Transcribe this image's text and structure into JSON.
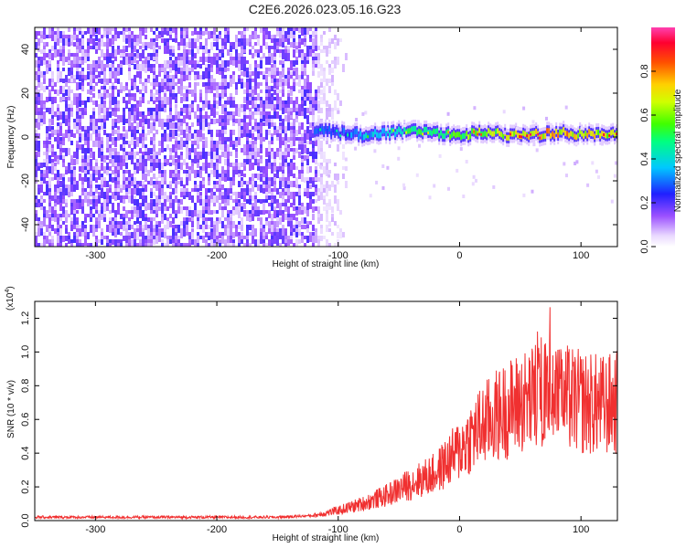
{
  "title": "C2E6.2026.023.05.16.G23",
  "chart_data": [
    {
      "type": "heatmap",
      "name": "spectrogram",
      "xlabel": "Height of straight line (km)",
      "ylabel": "Frequency (Hz)",
      "xlim": [
        -350,
        130
      ],
      "ylim": [
        -50,
        50
      ],
      "xticks": [
        -300,
        -200,
        -100,
        0,
        100
      ],
      "yticks": [
        -40,
        -20,
        0,
        20,
        40
      ],
      "colorbar": {
        "label": "Normalized spectral amplitude",
        "range": [
          0.0,
          1.0
        ],
        "ticks": [
          "0.0",
          "0.2",
          "0.4",
          "0.6",
          "0.8"
        ]
      },
      "noise_region_x": [
        -350,
        -120
      ],
      "signal_track": {
        "x": [
          -120,
          -100,
          -80,
          -60,
          -40,
          -20,
          0,
          20,
          40,
          60,
          80,
          100,
          130
        ],
        "freq": [
          3,
          2,
          1,
          2,
          3,
          2,
          1,
          2,
          1,
          1,
          2,
          1,
          1
        ],
        "amplitude": [
          0.35,
          0.3,
          0.4,
          0.45,
          0.55,
          0.6,
          0.65,
          0.7,
          0.75,
          0.8,
          0.85,
          0.8,
          0.75
        ]
      }
    },
    {
      "type": "line",
      "name": "snr",
      "xlabel": "Height of straight line (km)",
      "ylabel": "SNR (10 * v/v)",
      "y_exponent_label": "(x10",
      "y_exponent": "4",
      "xlim": [
        -350,
        130
      ],
      "ylim": [
        0,
        1.3
      ],
      "xticks": [
        -300,
        -200,
        -100,
        0,
        100
      ],
      "yticks": [
        "0.0",
        "0.2",
        "0.4",
        "0.6",
        "0.8",
        "1.0",
        "1.2"
      ],
      "series": [
        {
          "name": "SNR",
          "color": "#f03030",
          "x": [
            -350,
            -300,
            -250,
            -200,
            -150,
            -120,
            -100,
            -80,
            -60,
            -40,
            -20,
            -10,
            0,
            10,
            20,
            30,
            40,
            50,
            60,
            70,
            80,
            90,
            100,
            110,
            120,
            130
          ],
          "y": [
            0.02,
            0.02,
            0.02,
            0.02,
            0.02,
            0.03,
            0.06,
            0.1,
            0.15,
            0.22,
            0.28,
            0.35,
            0.42,
            0.5,
            0.57,
            0.62,
            0.66,
            0.7,
            0.72,
            0.75,
            0.73,
            0.72,
            0.7,
            0.69,
            0.68,
            0.7
          ]
        }
      ]
    }
  ]
}
